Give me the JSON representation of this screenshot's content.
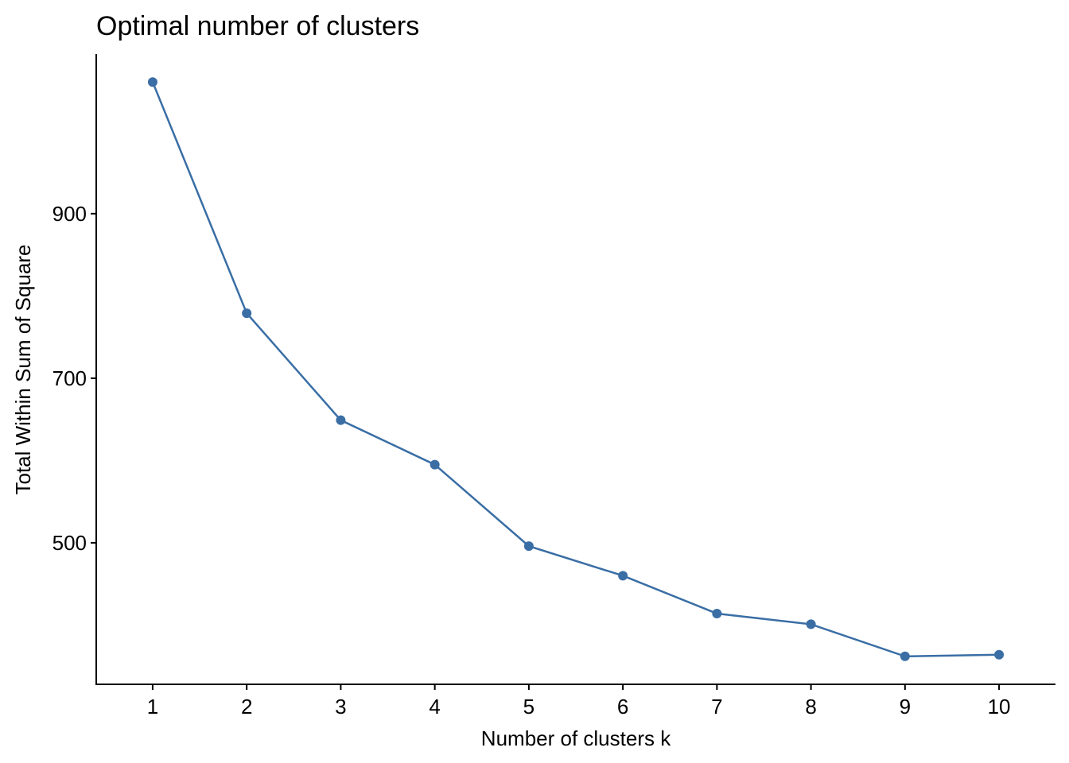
{
  "chart_data": {
    "type": "line",
    "title": "Optimal number of clusters",
    "x_label": "Number of clusters k",
    "y_label": "Total Within Sum of Square",
    "x": [
      1,
      2,
      3,
      4,
      5,
      6,
      7,
      8,
      9,
      10
    ],
    "values": [
      1060,
      779,
      649,
      595,
      496,
      460,
      414,
      401,
      362,
      364
    ],
    "color": "#3a6ea5",
    "xlim": [
      0.4,
      10.6
    ],
    "xticks": [
      1,
      2,
      3,
      4,
      5,
      6,
      7,
      8,
      9,
      10
    ],
    "ylim": [
      328,
      1094
    ],
    "yticks": [
      500,
      700,
      900
    ],
    "grid": false
  }
}
